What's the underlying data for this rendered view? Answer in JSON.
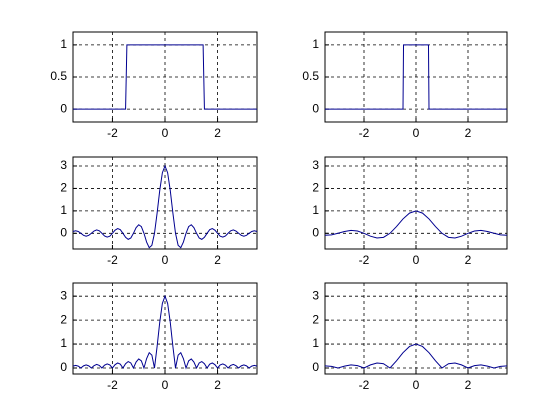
{
  "chart_data": [
    {
      "type": "line",
      "x": [
        -3.5,
        -1.5,
        -1.45,
        1.45,
        1.5,
        3.5
      ],
      "values": [
        0,
        0,
        1,
        1,
        0,
        0
      ],
      "color": "#000090",
      "xlim": [
        -3.5,
        3.5
      ],
      "ylim": [
        -0.2,
        1.2
      ],
      "xticks": [
        -2,
        0,
        2
      ],
      "yticks": [
        0,
        0.5,
        1
      ],
      "grid": true
    },
    {
      "type": "line",
      "x": [
        -3.5,
        -0.5,
        -0.48,
        0.48,
        0.5,
        3.5
      ],
      "values": [
        0,
        0,
        1,
        1,
        0,
        0
      ],
      "color": "#000090",
      "xlim": [
        -3.5,
        3.5
      ],
      "ylim": [
        -0.2,
        1.2
      ],
      "xticks": [
        -2,
        0,
        2
      ],
      "yticks": [
        0,
        0.5,
        1
      ],
      "grid": true
    },
    {
      "type": "line",
      "x": [
        -3.5,
        -3.4,
        -3.3,
        -3.2,
        -3.1,
        -3.0,
        -2.9,
        -2.8,
        -2.7,
        -2.6,
        -2.5,
        -2.4,
        -2.3,
        -2.2,
        -2.1,
        -2.0,
        -1.9,
        -1.8,
        -1.7,
        -1.6,
        -1.5,
        -1.4,
        -1.3,
        -1.2,
        -1.1,
        -1.0,
        -0.9,
        -0.8,
        -0.7,
        -0.6,
        -0.5,
        -0.4,
        -0.3,
        -0.2,
        -0.1,
        0,
        0.1,
        0.2,
        0.3,
        0.4,
        0.5,
        0.6,
        0.7,
        0.8,
        0.9,
        1.0,
        1.1,
        1.2,
        1.3,
        1.4,
        1.5,
        1.6,
        1.7,
        1.8,
        1.9,
        2.0,
        2.1,
        2.2,
        2.3,
        2.4,
        2.5,
        2.6,
        2.7,
        2.8,
        2.9,
        3.0,
        3.1,
        3.2,
        3.3,
        3.4,
        3.5
      ],
      "values": [
        0.08,
        0.11,
        0.08,
        0,
        -0.09,
        -0.13,
        -0.09,
        0,
        0.1,
        0.15,
        0.11,
        0,
        -0.12,
        -0.17,
        -0.13,
        0,
        0.14,
        0.21,
        0.16,
        0,
        -0.18,
        -0.27,
        -0.21,
        0,
        0.25,
        0.38,
        0.3,
        0,
        -0.39,
        -0.64,
        -0.54,
        0,
        0.9,
        1.91,
        2.7,
        3,
        2.7,
        1.91,
        0.9,
        0,
        -0.54,
        -0.64,
        -0.39,
        0,
        0.3,
        0.38,
        0.25,
        0,
        -0.21,
        -0.27,
        -0.18,
        0,
        0.16,
        0.21,
        0.14,
        0,
        -0.13,
        -0.17,
        -0.12,
        0,
        0.11,
        0.15,
        0.1,
        0,
        -0.09,
        -0.13,
        -0.09,
        0,
        0.08,
        0.11,
        0.08
      ],
      "color": "#000090",
      "xlim": [
        -3.5,
        3.5
      ],
      "ylim": [
        -0.7,
        3.4
      ],
      "xticks": [
        -2,
        0,
        2
      ],
      "yticks": [
        0,
        1,
        2,
        3
      ],
      "grid": true
    },
    {
      "type": "line",
      "x": [
        -3.5,
        -3.25,
        -3.0,
        -2.75,
        -2.5,
        -2.25,
        -2.0,
        -1.75,
        -1.5,
        -1.25,
        -1.0,
        -0.75,
        -0.5,
        -0.25,
        0,
        0.25,
        0.5,
        0.75,
        1.0,
        1.25,
        1.5,
        1.75,
        2.0,
        2.25,
        2.5,
        2.75,
        3.0,
        3.25,
        3.5
      ],
      "values": [
        -0.09,
        -0.07,
        0,
        0.08,
        0.13,
        0.1,
        0,
        -0.13,
        -0.21,
        -0.18,
        0,
        0.3,
        0.64,
        0.9,
        1,
        0.9,
        0.64,
        0.3,
        0,
        -0.18,
        -0.21,
        -0.13,
        0,
        0.1,
        0.13,
        0.08,
        0,
        -0.07,
        -0.09
      ],
      "color": "#000090",
      "xlim": [
        -3.5,
        3.5
      ],
      "ylim": [
        -0.7,
        3.4
      ],
      "xticks": [
        -2,
        0,
        2
      ],
      "yticks": [
        0,
        1,
        2,
        3
      ],
      "grid": true
    },
    {
      "type": "line",
      "x": [
        -3.5,
        -3.4,
        -3.3,
        -3.2,
        -3.1,
        -3.0,
        -2.9,
        -2.8,
        -2.7,
        -2.6,
        -2.5,
        -2.4,
        -2.3,
        -2.2,
        -2.1,
        -2.0,
        -1.9,
        -1.8,
        -1.7,
        -1.6,
        -1.5,
        -1.4,
        -1.3,
        -1.2,
        -1.1,
        -1.0,
        -0.9,
        -0.8,
        -0.7,
        -0.6,
        -0.5,
        -0.4,
        -0.3,
        -0.2,
        -0.1,
        0,
        0.1,
        0.2,
        0.3,
        0.4,
        0.5,
        0.6,
        0.7,
        0.8,
        0.9,
        1.0,
        1.1,
        1.2,
        1.3,
        1.4,
        1.5,
        1.6,
        1.7,
        1.8,
        1.9,
        2.0,
        2.1,
        2.2,
        2.3,
        2.4,
        2.5,
        2.6,
        2.7,
        2.8,
        2.9,
        3.0,
        3.1,
        3.2,
        3.3,
        3.4,
        3.5
      ],
      "values": [
        0.08,
        0.11,
        0.08,
        0,
        0.09,
        0.13,
        0.09,
        0,
        0.1,
        0.15,
        0.11,
        0,
        0.12,
        0.17,
        0.13,
        0,
        0.14,
        0.21,
        0.16,
        0,
        0.18,
        0.27,
        0.21,
        0,
        0.25,
        0.38,
        0.3,
        0,
        0.39,
        0.64,
        0.54,
        0,
        0.9,
        1.91,
        2.7,
        3,
        2.7,
        1.91,
        0.9,
        0,
        0.54,
        0.64,
        0.39,
        0,
        0.3,
        0.38,
        0.25,
        0,
        0.21,
        0.27,
        0.18,
        0,
        0.16,
        0.21,
        0.14,
        0,
        0.13,
        0.17,
        0.12,
        0,
        0.11,
        0.15,
        0.1,
        0,
        0.09,
        0.13,
        0.09,
        0,
        0.08,
        0.11,
        0.08
      ],
      "color": "#000090",
      "xlim": [
        -3.5,
        3.5
      ],
      "ylim": [
        -0.25,
        3.55
      ],
      "xticks": [
        -2,
        0,
        2
      ],
      "yticks": [
        0,
        1,
        2,
        3
      ],
      "grid": true
    },
    {
      "type": "line",
      "x": [
        -3.5,
        -3.25,
        -3.0,
        -2.75,
        -2.5,
        -2.25,
        -2.0,
        -1.75,
        -1.5,
        -1.25,
        -1.0,
        -0.75,
        -0.5,
        -0.25,
        0,
        0.25,
        0.5,
        0.75,
        1.0,
        1.25,
        1.5,
        1.75,
        2.0,
        2.25,
        2.5,
        2.75,
        3.0,
        3.25,
        3.5
      ],
      "values": [
        0.09,
        0.07,
        0,
        0.08,
        0.13,
        0.1,
        0,
        0.13,
        0.21,
        0.18,
        0,
        0.3,
        0.64,
        0.9,
        1,
        0.9,
        0.64,
        0.3,
        0,
        0.18,
        0.21,
        0.13,
        0,
        0.1,
        0.13,
        0.08,
        0,
        0.07,
        0.09
      ],
      "color": "#000090",
      "xlim": [
        -3.5,
        3.5
      ],
      "ylim": [
        -0.25,
        3.55
      ],
      "xticks": [
        -2,
        0,
        2
      ],
      "yticks": [
        0,
        1,
        2,
        3
      ],
      "grid": true
    }
  ]
}
